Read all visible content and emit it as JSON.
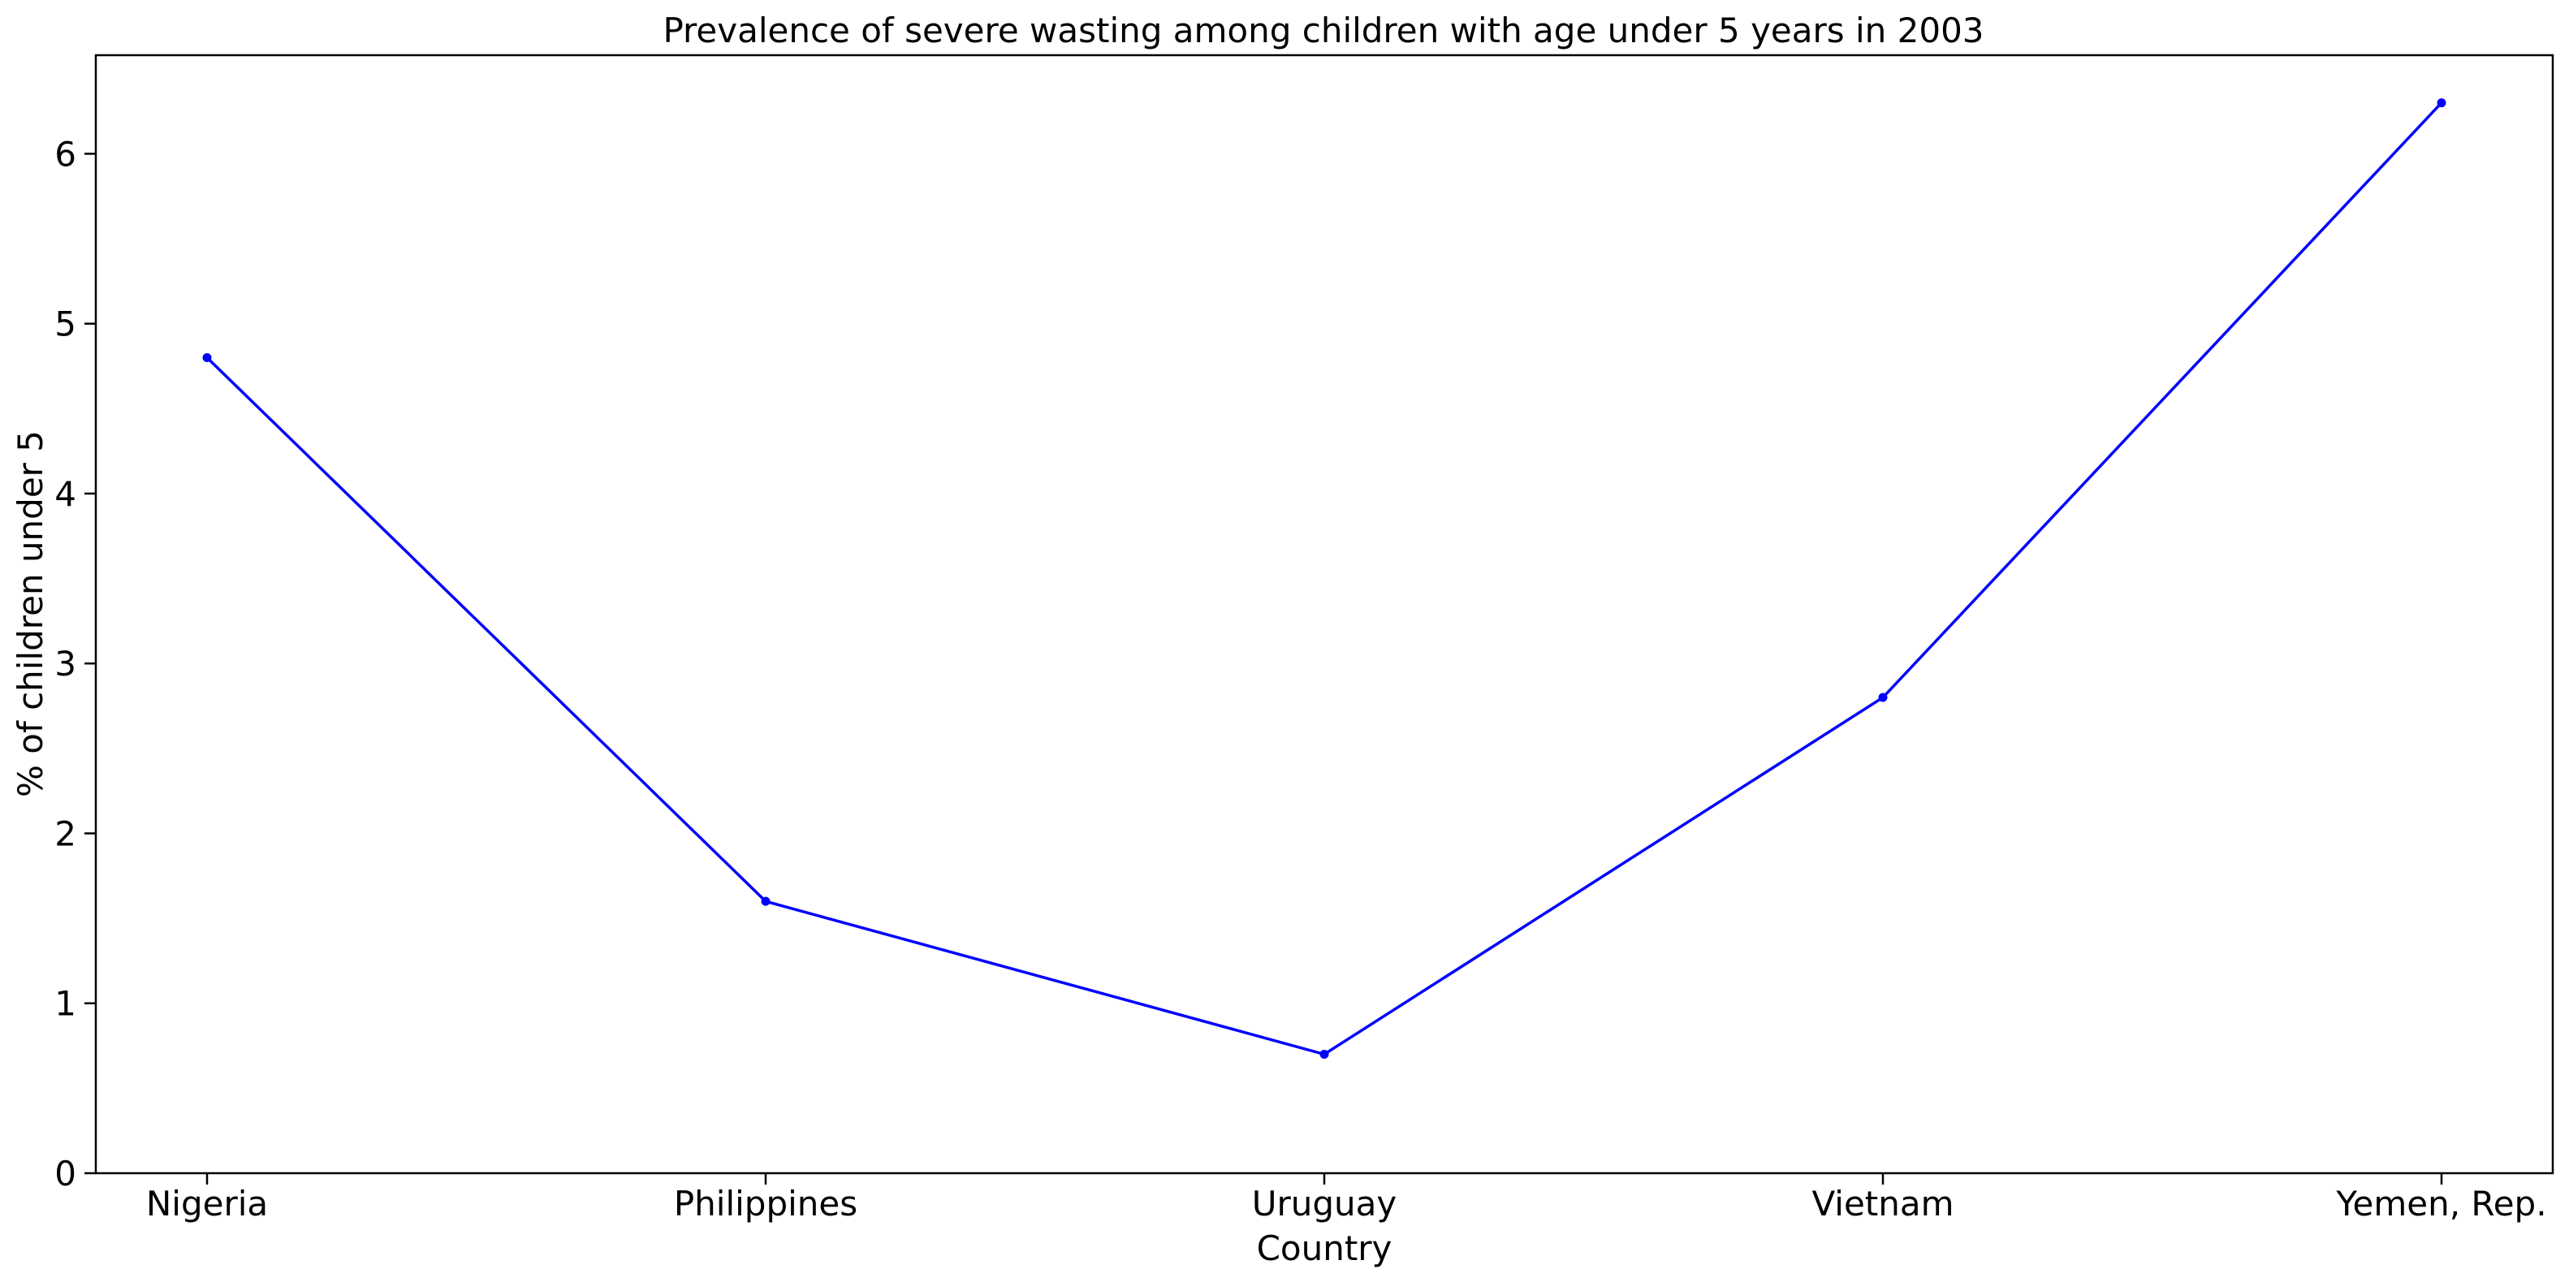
{
  "chart_data": {
    "type": "line",
    "title": "Prevalence of severe wasting among children with age under 5 years in 2003",
    "xlabel": "Country",
    "ylabel": "% of children under 5",
    "categories": [
      "Nigeria",
      "Philippines",
      "Uruguay",
      "Vietnam",
      "Yemen, Rep."
    ],
    "series": [
      {
        "values": [
          4.8,
          1.6,
          0.7,
          2.8,
          6.3
        ],
        "color": "#0000ff"
      }
    ],
    "ylim": [
      0,
      6.58
    ],
    "yticks": [
      0,
      1,
      2,
      3,
      4,
      5,
      6
    ],
    "grid": false,
    "legend": "none"
  }
}
